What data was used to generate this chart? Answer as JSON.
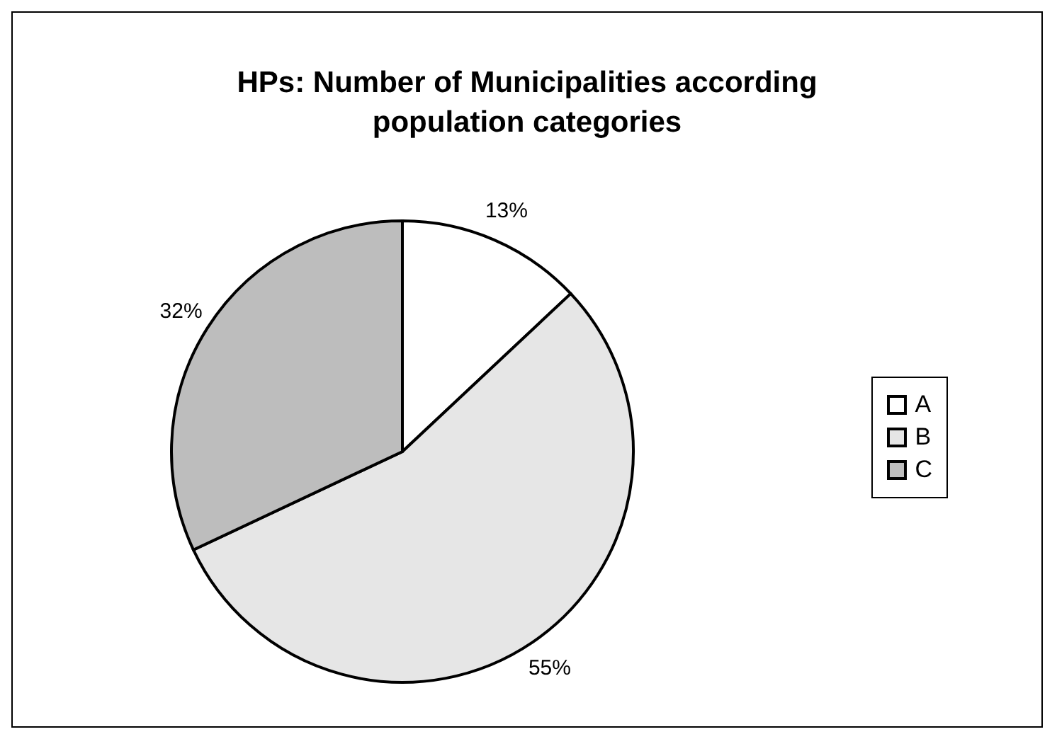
{
  "chart_data": {
    "type": "pie",
    "title": "HPs: Number of Municipalities according population categories",
    "categories": [
      "A",
      "B",
      "C"
    ],
    "values": [
      13,
      55,
      32
    ],
    "value_labels": [
      "13%",
      "55%",
      "32%"
    ],
    "colors": [
      "#ffffff",
      "#e6e6e6",
      "#bdbdbd"
    ],
    "legend": "right"
  }
}
